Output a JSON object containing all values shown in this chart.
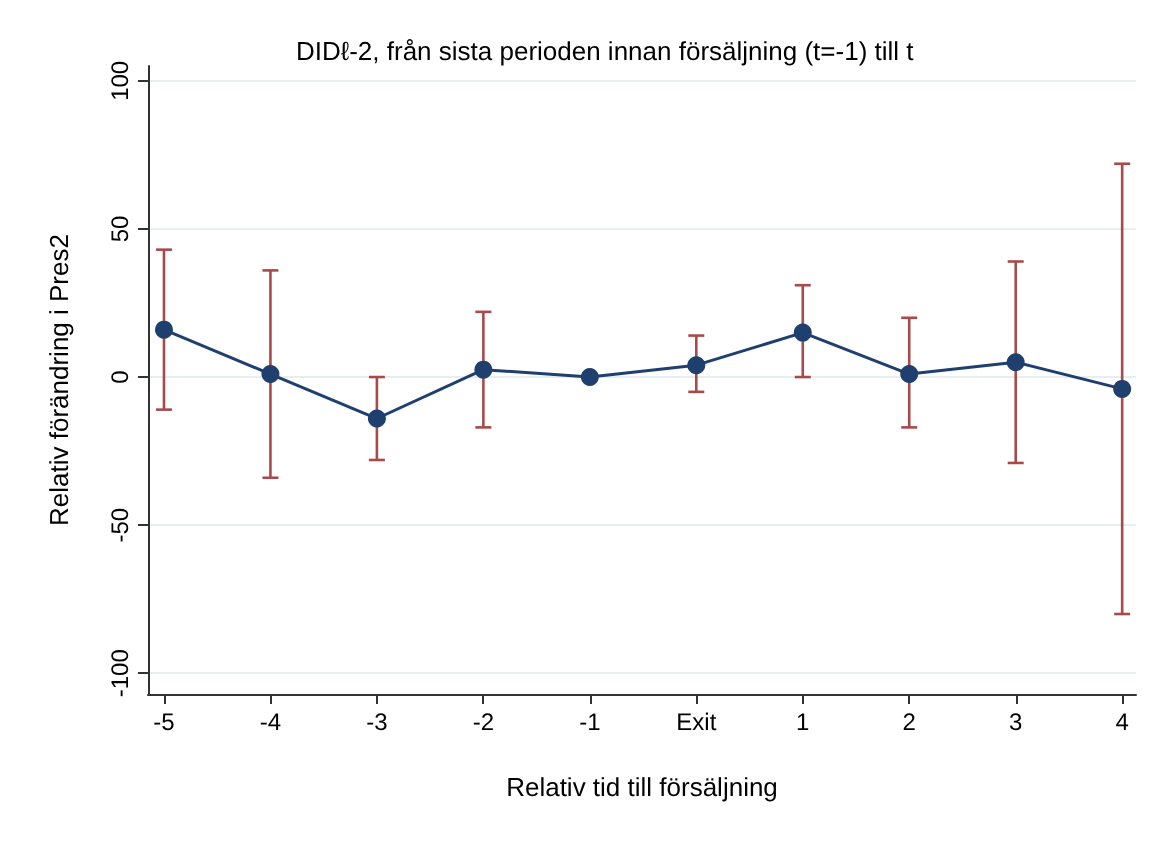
{
  "chart_data": {
    "type": "line",
    "title": "DIDℓ-2, från sista perioden innan försäljning (t=-1) till t",
    "xlabel": "Relativ tid till försäljning",
    "ylabel": "Relativ förändring i Pres2",
    "x": [
      -5,
      -4,
      -3,
      -2,
      -1,
      0,
      1,
      2,
      3,
      4
    ],
    "series": [
      {
        "color": "#1f3f6e",
        "values": [
          16,
          1,
          -14,
          2.5,
          0,
          4,
          15,
          1,
          5,
          -4
        ],
        "errors": [
          [
            -11,
            43
          ],
          [
            -34,
            36
          ],
          [
            -28,
            0
          ],
          [
            -17,
            22
          ],
          null,
          [
            -5,
            14
          ],
          [
            0,
            31
          ],
          [
            -17,
            20
          ],
          [
            -29,
            39
          ],
          [
            -80,
            72
          ]
        ]
      }
    ],
    "xlim": [
      -5.15,
      4.13
    ],
    "xticks": [
      -5,
      -4,
      -3,
      -2,
      -1,
      {
        "value": 0,
        "label": "Exit"
      },
      1,
      2,
      3,
      4
    ],
    "ylim": [
      -107,
      105
    ],
    "yticks": [
      -100,
      -50,
      0,
      50,
      100
    ],
    "grid": "y",
    "marker": "circle",
    "line_style": "solid"
  }
}
